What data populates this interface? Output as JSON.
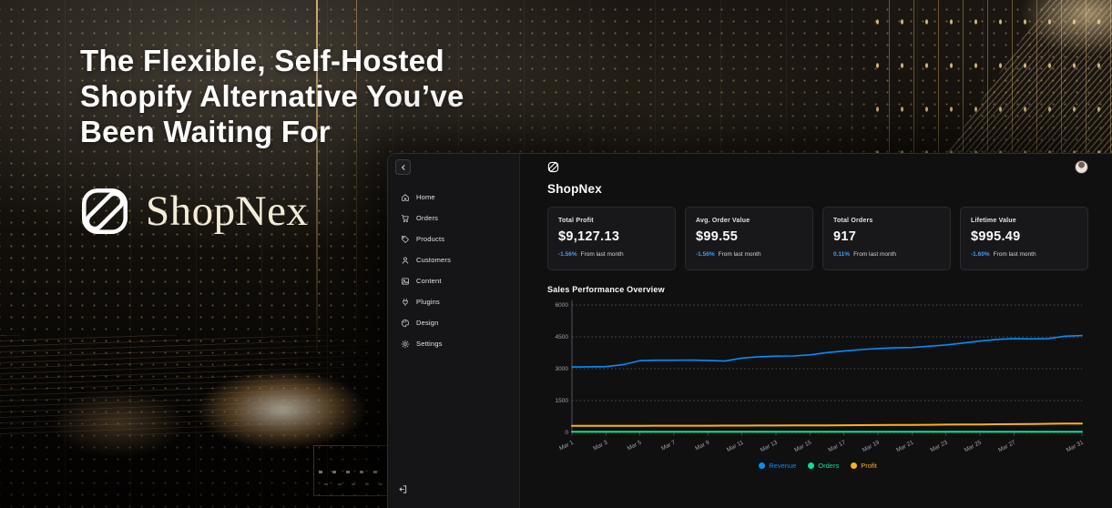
{
  "hero": {
    "headline_lines": [
      "The Flexible, Self-Hosted",
      "Shopify Alternative You’ve",
      "Been Waiting For"
    ],
    "brand_name": "ShopNex",
    "brand_logo_icon": "shopnex-slash-square-icon"
  },
  "dashboard": {
    "title": "ShopNex",
    "header_icons": {
      "mark": "shopnex-slash-square-icon",
      "avatar": "user-avatar"
    },
    "sidebar": {
      "collapse_icon": "chevron-left-icon",
      "logout_icon": "logout-icon",
      "items": [
        {
          "label": "Home",
          "icon": "home-icon"
        },
        {
          "label": "Orders",
          "icon": "cart-icon"
        },
        {
          "label": "Products",
          "icon": "tag-icon"
        },
        {
          "label": "Customers",
          "icon": "user-icon"
        },
        {
          "label": "Content",
          "icon": "image-icon"
        },
        {
          "label": "Plugins",
          "icon": "plug-icon"
        },
        {
          "label": "Design",
          "icon": "palette-icon"
        },
        {
          "label": "Settings",
          "icon": "gear-icon"
        }
      ]
    },
    "stats": [
      {
        "title": "Total Profit",
        "value": "$9,127.13",
        "delta": "-1.56%",
        "caption": "From last month",
        "delta_color": "#3b9ef5"
      },
      {
        "title": "Avg. Order Value",
        "value": "$99.55",
        "delta": "-1.56%",
        "caption": "From last month",
        "delta_color": "#3b9ef5"
      },
      {
        "title": "Total Orders",
        "value": "917",
        "delta": "0.11%",
        "caption": "From last month",
        "delta_color": "#3b9ef5"
      },
      {
        "title": "Lifetime Value",
        "value": "$995.49",
        "delta": "-1.60%",
        "caption": "From last month",
        "delta_color": "#3b9ef5"
      }
    ],
    "chart_section_title": "Sales Performance Overview"
  },
  "chart_data": {
    "type": "line",
    "title": "Sales Performance Overview",
    "xlabel": "",
    "ylabel": "",
    "ylim": [
      0,
      6000
    ],
    "yticks": [
      0,
      1500,
      3000,
      4500,
      6000
    ],
    "grid": "dotted-horizontal",
    "legend_position": "bottom",
    "x": [
      "Mar 1",
      "Mar 2",
      "Mar 3",
      "Mar 4",
      "Mar 5",
      "Mar 6",
      "Mar 7",
      "Mar 8",
      "Mar 9",
      "Mar 10",
      "Mar 11",
      "Mar 12",
      "Mar 13",
      "Mar 14",
      "Mar 15",
      "Mar 16",
      "Mar 17",
      "Mar 18",
      "Mar 19",
      "Mar 20",
      "Mar 21",
      "Mar 22",
      "Mar 23",
      "Mar 24",
      "Mar 25",
      "Mar 26",
      "Mar 27",
      "Mar 28",
      "Mar 29",
      "Mar 30",
      "Mar 31"
    ],
    "x_ticks_shown": [
      "Mar 1",
      "Mar 3",
      "Mar 5",
      "Mar 7",
      "Mar 9",
      "Mar 11",
      "Mar 13",
      "Mar 15",
      "Mar 17",
      "Mar 19",
      "Mar 21",
      "Mar 23",
      "Mar 25",
      "Mar 27",
      "Mar 31"
    ],
    "series": [
      {
        "name": "Revenue",
        "color": "#008FFB",
        "values": [
          3080,
          3090,
          3100,
          3190,
          3380,
          3400,
          3400,
          3405,
          3390,
          3360,
          3500,
          3560,
          3590,
          3600,
          3650,
          3760,
          3830,
          3900,
          3950,
          3980,
          4000,
          4060,
          4120,
          4210,
          4300,
          4380,
          4420,
          4400,
          4420,
          4530,
          4560
        ]
      },
      {
        "name": "Orders",
        "color": "#00E396",
        "values": [
          30,
          31,
          30,
          32,
          31,
          30,
          31,
          32,
          31,
          30,
          31,
          32,
          31,
          30,
          31,
          32,
          31,
          30,
          31,
          32,
          31,
          30,
          31,
          32,
          31,
          30,
          31,
          32,
          31,
          30,
          31
        ]
      },
      {
        "name": "Profit",
        "color": "#FEB019",
        "values": [
          310,
          312,
          313,
          314,
          315,
          316,
          317,
          318,
          319,
          320,
          322,
          325,
          327,
          330,
          333,
          336,
          340,
          344,
          348,
          352,
          357,
          362,
          367,
          373,
          379,
          385,
          392,
          399,
          406,
          414,
          422
        ]
      }
    ]
  }
}
